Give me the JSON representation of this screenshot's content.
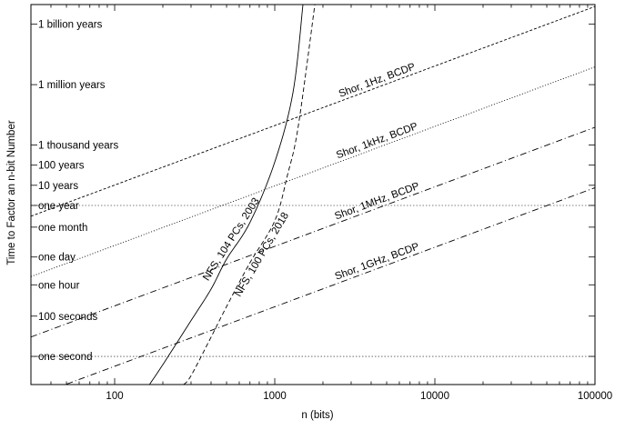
{
  "chart_data": {
    "type": "line",
    "xscale": "log",
    "yscale": "log",
    "xlabel": "n (bits)",
    "ylabel": "Time to Factor an n-bit Number",
    "xlim": [
      30,
      100000
    ],
    "ylim_seconds": [
      0.04,
      3e+17
    ],
    "xticks": [
      {
        "value": 100,
        "label": "100"
      },
      {
        "value": 1000,
        "label": "1000"
      },
      {
        "value": 10000,
        "label": "10000"
      },
      {
        "value": 100000,
        "label": "100000"
      }
    ],
    "yticks": [
      {
        "value": 3.156e+16,
        "label": "1 billion years"
      },
      {
        "value": 31560000000000.0,
        "label": "1 million years"
      },
      {
        "value": 31560000000.0,
        "label": "1 thousand years"
      },
      {
        "value": 3156000000.0,
        "label": "100 years"
      },
      {
        "value": 315600000.0,
        "label": "10 years"
      },
      {
        "value": 31560000.0,
        "label": "one year"
      },
      {
        "value": 2630000.0,
        "label": "one month"
      },
      {
        "value": 86400,
        "label": "one day"
      },
      {
        "value": 3600,
        "label": "one hour"
      },
      {
        "value": 100,
        "label": "100 seconds"
      },
      {
        "value": 1,
        "label": "one second"
      }
    ],
    "reference_lines": [
      {
        "y": 31560000.0,
        "style": "dotted"
      },
      {
        "y": 1,
        "style": "dotted"
      }
    ],
    "series": [
      {
        "name": "Shor, 1Hz, BCDP",
        "style": "dashed-fine",
        "x": [
          30,
          100000
        ],
        "y": [
          9200000.0,
          2.4e+17
        ]
      },
      {
        "name": "Shor, 1kHz, BCDP",
        "style": "dotted",
        "x": [
          30,
          100000
        ],
        "y": [
          9200.0,
          240000000000000.0
        ]
      },
      {
        "name": "Shor, 1MHz, BCDP",
        "style": "dash-dot",
        "x": [
          30,
          100000
        ],
        "y": [
          9.2,
          240000000000.0
        ]
      },
      {
        "name": "Shor, 1GHz, BCDP",
        "style": "dash-dot",
        "x": [
          30,
          100000
        ],
        "y": [
          0.0092,
          240000000.0
        ]
      },
      {
        "name": "NFS, 104 PCs, 2003",
        "style": "solid",
        "x": [
          165,
          200,
          300,
          400,
          500,
          700,
          1000,
          1300,
          1500
        ],
        "y": [
          0.04,
          0.39,
          60,
          2200.0,
          68000.0,
          4500000.0,
          4500000000.0,
          13000000000000.0,
          3e+17
        ]
      },
      {
        "name": "NFS, 100 PCs, 2018",
        "style": "dashed",
        "x": [
          270,
          300,
          400,
          500,
          700,
          1000,
          1200,
          1400,
          1780
        ],
        "y": [
          0.04,
          0.11,
          9.0,
          300,
          45000.0,
          5400000.0,
          1000000000.0,
          250000000000.0,
          3e+17
        ]
      }
    ]
  }
}
